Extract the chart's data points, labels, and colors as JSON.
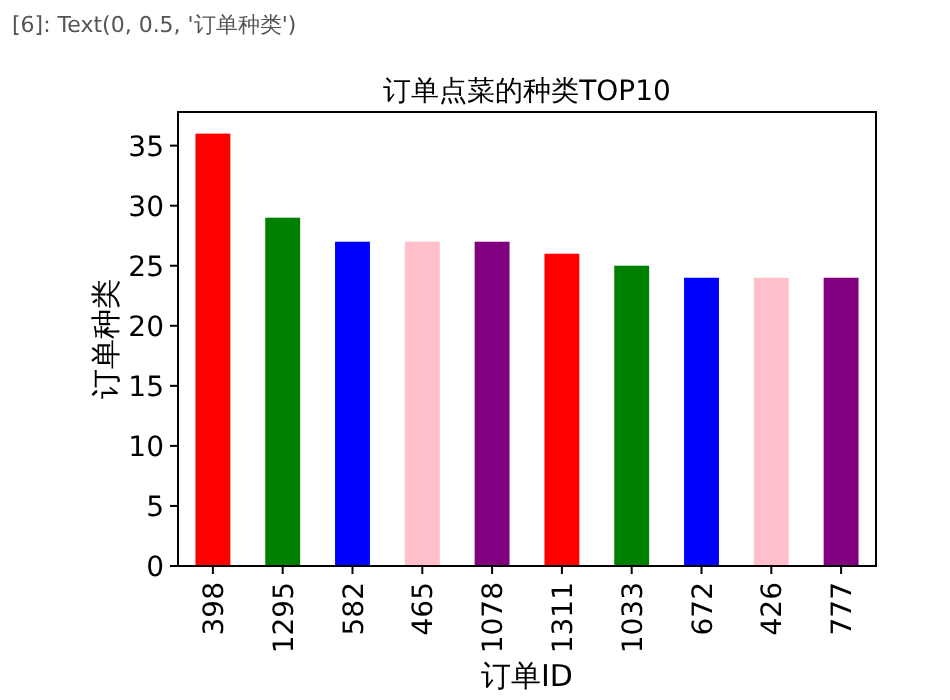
{
  "chart_data": {
    "type": "bar",
    "title": "订单点菜的种类TOP10",
    "xlabel": "订单ID",
    "ylabel": "订单种类",
    "annotations": [
      "[6]:  Text(0, 0.5, '订单种类')"
    ],
    "categories": [
      "398",
      "1295",
      "582",
      "465",
      "1078",
      "1311",
      "1033",
      "672",
      "426",
      "777"
    ],
    "values": [
      36,
      29,
      27,
      27,
      27,
      26,
      25,
      24,
      24,
      24
    ],
    "colors": [
      "#ff0000",
      "#008000",
      "#0000ff",
      "#ffc0cb",
      "#800080",
      "#ff0000",
      "#008000",
      "#0000ff",
      "#ffc0cb",
      "#800080"
    ],
    "ylim": [
      0,
      37.8
    ],
    "yticks": [
      0,
      5,
      10,
      15,
      20,
      25,
      30,
      35
    ],
    "grid": false
  }
}
